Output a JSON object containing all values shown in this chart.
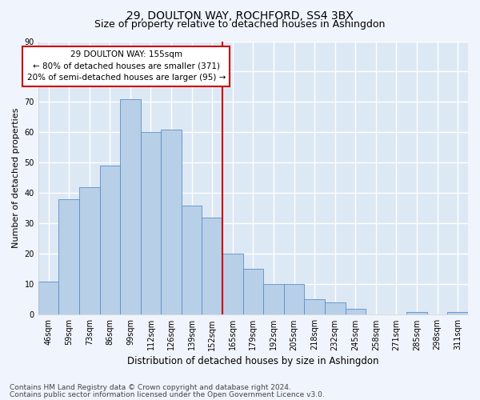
{
  "title1": "29, DOULTON WAY, ROCHFORD, SS4 3BX",
  "title2": "Size of property relative to detached houses in Ashingdon",
  "xlabel": "Distribution of detached houses by size in Ashingdon",
  "ylabel": "Number of detached properties",
  "bar_labels": [
    "46sqm",
    "59sqm",
    "73sqm",
    "86sqm",
    "99sqm",
    "112sqm",
    "126sqm",
    "139sqm",
    "152sqm",
    "165sqm",
    "179sqm",
    "192sqm",
    "205sqm",
    "218sqm",
    "232sqm",
    "245sqm",
    "258sqm",
    "271sqm",
    "285sqm",
    "298sqm",
    "311sqm"
  ],
  "bar_values": [
    11,
    38,
    42,
    49,
    71,
    60,
    61,
    36,
    32,
    20,
    15,
    10,
    10,
    5,
    4,
    2,
    0,
    0,
    1,
    0,
    1
  ],
  "bar_color": "#b8cfe8",
  "bar_edge_color": "#5a8fc4",
  "background_color": "#dde8f5",
  "fig_background_color": "#f0f4fc",
  "grid_color": "#ffffff",
  "vline_x": 8.5,
  "vline_color": "#cc0000",
  "annotation_text": "29 DOULTON WAY: 155sqm\n← 80% of detached houses are smaller (371)\n20% of semi-detached houses are larger (95) →",
  "annotation_box_color": "#ffffff",
  "annotation_box_edge_color": "#cc0000",
  "ylim": [
    0,
    90
  ],
  "yticks": [
    0,
    10,
    20,
    30,
    40,
    50,
    60,
    70,
    80,
    90
  ],
  "footer1": "Contains HM Land Registry data © Crown copyright and database right 2024.",
  "footer2": "Contains public sector information licensed under the Open Government Licence v3.0.",
  "title1_fontsize": 10,
  "title2_fontsize": 9,
  "xlabel_fontsize": 8.5,
  "ylabel_fontsize": 8,
  "tick_fontsize": 7,
  "annotation_fontsize": 7.5,
  "footer_fontsize": 6.5
}
